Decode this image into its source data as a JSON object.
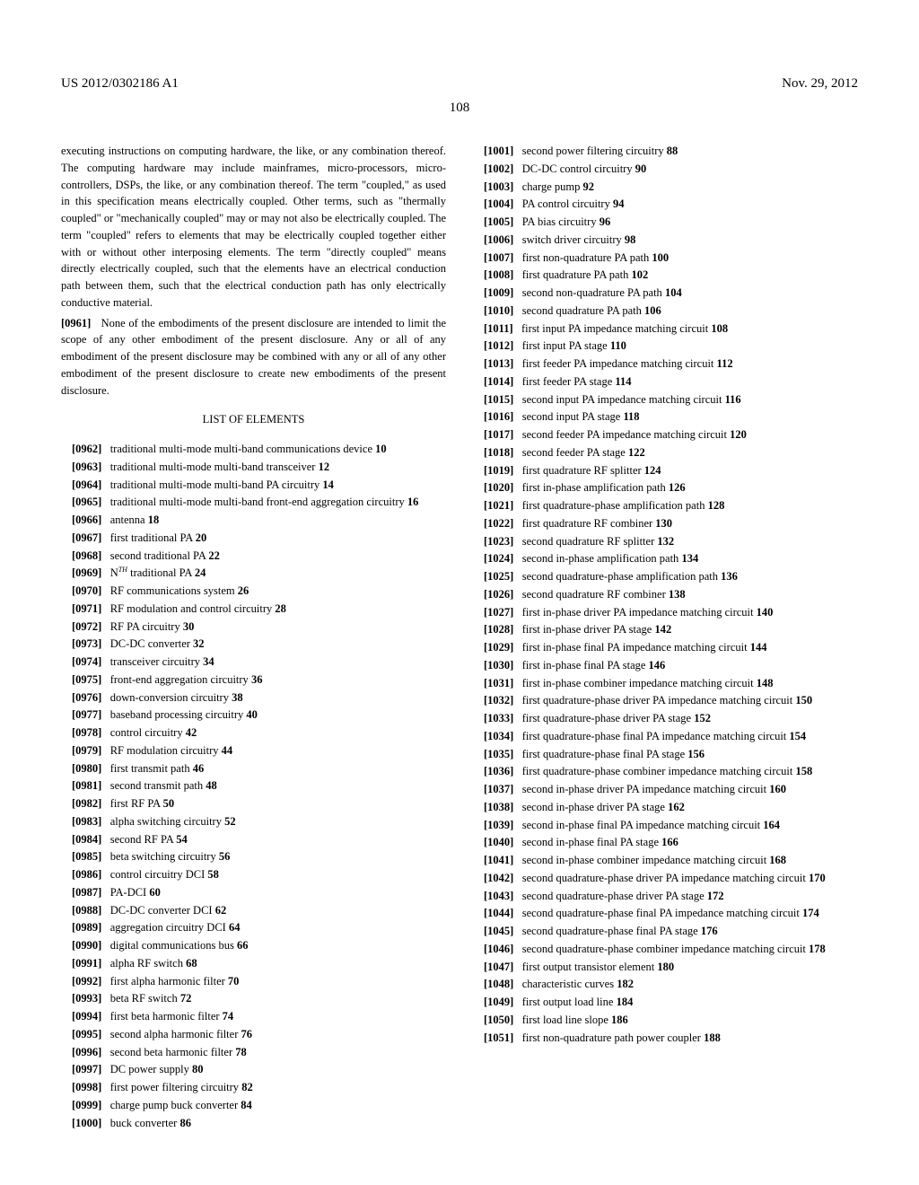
{
  "header": {
    "patent_number": "US 2012/0302186 A1",
    "date": "Nov. 29, 2012",
    "page": "108"
  },
  "colors": {
    "text": "#000000",
    "background": "#ffffff"
  },
  "typography": {
    "body_font": "Times New Roman",
    "body_size": 12.5,
    "header_size": 15
  },
  "left_column": {
    "intro_text": "executing instructions on computing hardware, the like, or any combination thereof. The computing hardware may include mainframes, micro-processors, micro-controllers, DSPs, the like, or any combination thereof. The term \"coupled,\" as used in this specification means electrically coupled. Other terms, such as \"thermally coupled\" or \"mechanically coupled\" may or may not also be electrically coupled. The term \"coupled\" refers to elements that may be electrically coupled together either with or without other interposing elements. The term \"directly coupled\" means directly electrically coupled, such that the elements have an electrical conduction path between them, such that the electrical conduction path has only electrically conductive material.",
    "para_0961_num": "[0961]",
    "para_0961_text": "None of the embodiments of the present disclosure are intended to limit the scope of any other embodiment of the present disclosure. Any or all of any embodiment of the present disclosure may be combined with any or all of any other embodiment of the present disclosure to create new embodiments of the present disclosure.",
    "section_title": "LIST OF ELEMENTS",
    "items": [
      {
        "num": "[0962]",
        "text": "traditional multi-mode multi-band communications device",
        "ref": "10"
      },
      {
        "num": "[0963]",
        "text": "traditional multi-mode multi-band transceiver",
        "ref": "12"
      },
      {
        "num": "[0964]",
        "text": "traditional multi-mode multi-band PA circuitry",
        "ref": "14"
      },
      {
        "num": "[0965]",
        "text": "traditional multi-mode multi-band front-end aggregation circuitry",
        "ref": "16"
      },
      {
        "num": "[0966]",
        "text": "antenna",
        "ref": "18"
      },
      {
        "num": "[0967]",
        "text": "first traditional PA",
        "ref": "20"
      },
      {
        "num": "[0968]",
        "text": "second traditional PA",
        "ref": "22"
      },
      {
        "num": "[0969]",
        "text": "N",
        "sup": "TH",
        "text2": " traditional PA",
        "ref": "24"
      },
      {
        "num": "[0970]",
        "text": "RF communications system",
        "ref": "26"
      },
      {
        "num": "[0971]",
        "text": "RF modulation and control circuitry",
        "ref": "28"
      },
      {
        "num": "[0972]",
        "text": "RF PA circuitry",
        "ref": "30"
      },
      {
        "num": "[0973]",
        "text": "DC-DC converter",
        "ref": "32"
      },
      {
        "num": "[0974]",
        "text": "transceiver circuitry",
        "ref": "34"
      },
      {
        "num": "[0975]",
        "text": "front-end aggregation circuitry",
        "ref": "36"
      },
      {
        "num": "[0976]",
        "text": "down-conversion circuitry",
        "ref": "38"
      },
      {
        "num": "[0977]",
        "text": "baseband processing circuitry",
        "ref": "40"
      },
      {
        "num": "[0978]",
        "text": "control circuitry",
        "ref": "42"
      },
      {
        "num": "[0979]",
        "text": "RF modulation circuitry",
        "ref": "44"
      },
      {
        "num": "[0980]",
        "text": "first transmit path",
        "ref": "46"
      },
      {
        "num": "[0981]",
        "text": "second transmit path",
        "ref": "48"
      },
      {
        "num": "[0982]",
        "text": "first RF PA",
        "ref": "50"
      },
      {
        "num": "[0983]",
        "text": "alpha switching circuitry",
        "ref": "52"
      },
      {
        "num": "[0984]",
        "text": "second RF PA",
        "ref": "54"
      },
      {
        "num": "[0985]",
        "text": "beta switching circuitry",
        "ref": "56"
      },
      {
        "num": "[0986]",
        "text": "control circuitry DCI",
        "ref": "58"
      },
      {
        "num": "[0987]",
        "text": "PA-DCI",
        "ref": "60"
      },
      {
        "num": "[0988]",
        "text": "DC-DC converter DCI",
        "ref": "62"
      },
      {
        "num": "[0989]",
        "text": "aggregation circuitry DCI",
        "ref": "64"
      },
      {
        "num": "[0990]",
        "text": "digital communications bus",
        "ref": "66"
      },
      {
        "num": "[0991]",
        "text": "alpha RF switch",
        "ref": "68"
      },
      {
        "num": "[0992]",
        "text": "first alpha harmonic filter",
        "ref": "70"
      },
      {
        "num": "[0993]",
        "text": "beta RF switch",
        "ref": "72"
      },
      {
        "num": "[0994]",
        "text": "first beta harmonic filter",
        "ref": "74"
      },
      {
        "num": "[0995]",
        "text": "second alpha harmonic filter",
        "ref": "76"
      },
      {
        "num": "[0996]",
        "text": "second beta harmonic filter",
        "ref": "78"
      },
      {
        "num": "[0997]",
        "text": "DC power supply",
        "ref": "80"
      },
      {
        "num": "[0998]",
        "text": "first power filtering circuitry",
        "ref": "82"
      },
      {
        "num": "[0999]",
        "text": "charge pump buck converter",
        "ref": "84"
      },
      {
        "num": "[1000]",
        "text": "buck converter",
        "ref": "86"
      }
    ]
  },
  "right_column": {
    "items": [
      {
        "num": "[1001]",
        "text": "second power filtering circuitry",
        "ref": "88"
      },
      {
        "num": "[1002]",
        "text": "DC-DC control circuitry",
        "ref": "90"
      },
      {
        "num": "[1003]",
        "text": "charge pump",
        "ref": "92"
      },
      {
        "num": "[1004]",
        "text": "PA control circuitry",
        "ref": "94"
      },
      {
        "num": "[1005]",
        "text": "PA bias circuitry",
        "ref": "96"
      },
      {
        "num": "[1006]",
        "text": "switch driver circuitry",
        "ref": "98"
      },
      {
        "num": "[1007]",
        "text": "first non-quadrature PA path",
        "ref": "100"
      },
      {
        "num": "[1008]",
        "text": "first quadrature PA path",
        "ref": "102"
      },
      {
        "num": "[1009]",
        "text": "second non-quadrature PA path",
        "ref": "104"
      },
      {
        "num": "[1010]",
        "text": "second quadrature PA path",
        "ref": "106"
      },
      {
        "num": "[1011]",
        "text": "first input PA impedance matching circuit",
        "ref": "108"
      },
      {
        "num": "[1012]",
        "text": "first input PA stage",
        "ref": "110"
      },
      {
        "num": "[1013]",
        "text": "first feeder PA impedance matching circuit",
        "ref": "112"
      },
      {
        "num": "[1014]",
        "text": "first feeder PA stage",
        "ref": "114"
      },
      {
        "num": "[1015]",
        "text": "second input PA impedance matching circuit",
        "ref": "116"
      },
      {
        "num": "[1016]",
        "text": "second input PA stage",
        "ref": "118"
      },
      {
        "num": "[1017]",
        "text": "second feeder PA impedance matching circuit",
        "ref": "120"
      },
      {
        "num": "[1018]",
        "text": "second feeder PA stage",
        "ref": "122"
      },
      {
        "num": "[1019]",
        "text": "first quadrature RF splitter",
        "ref": "124"
      },
      {
        "num": "[1020]",
        "text": "first in-phase amplification path",
        "ref": "126"
      },
      {
        "num": "[1021]",
        "text": "first quadrature-phase amplification path",
        "ref": "128"
      },
      {
        "num": "[1022]",
        "text": "first quadrature RF combiner",
        "ref": "130"
      },
      {
        "num": "[1023]",
        "text": "second quadrature RF splitter",
        "ref": "132"
      },
      {
        "num": "[1024]",
        "text": "second in-phase amplification path",
        "ref": "134"
      },
      {
        "num": "[1025]",
        "text": "second quadrature-phase amplification path",
        "ref": "136"
      },
      {
        "num": "[1026]",
        "text": "second quadrature RF combiner",
        "ref": "138"
      },
      {
        "num": "[1027]",
        "text": "first in-phase driver PA impedance matching circuit",
        "ref": "140"
      },
      {
        "num": "[1028]",
        "text": "first in-phase driver PA stage",
        "ref": "142"
      },
      {
        "num": "[1029]",
        "text": "first in-phase final PA impedance matching circuit",
        "ref": "144"
      },
      {
        "num": "[1030]",
        "text": "first in-phase final PA stage",
        "ref": "146"
      },
      {
        "num": "[1031]",
        "text": "first in-phase combiner impedance matching circuit",
        "ref": "148"
      },
      {
        "num": "[1032]",
        "text": "first quadrature-phase driver PA impedance matching circuit",
        "ref": "150"
      },
      {
        "num": "[1033]",
        "text": "first quadrature-phase driver PA stage",
        "ref": "152"
      },
      {
        "num": "[1034]",
        "text": "first quadrature-phase final PA impedance matching circuit",
        "ref": "154"
      },
      {
        "num": "[1035]",
        "text": "first quadrature-phase final PA stage",
        "ref": "156"
      },
      {
        "num": "[1036]",
        "text": "first quadrature-phase combiner impedance matching circuit",
        "ref": "158"
      },
      {
        "num": "[1037]",
        "text": "second in-phase driver PA impedance matching circuit",
        "ref": "160"
      },
      {
        "num": "[1038]",
        "text": "second in-phase driver PA stage",
        "ref": "162"
      },
      {
        "num": "[1039]",
        "text": "second in-phase final PA impedance matching circuit",
        "ref": "164"
      },
      {
        "num": "[1040]",
        "text": "second in-phase final PA stage",
        "ref": "166"
      },
      {
        "num": "[1041]",
        "text": "second in-phase combiner impedance matching circuit",
        "ref": "168"
      },
      {
        "num": "[1042]",
        "text": "second quadrature-phase driver PA impedance matching circuit",
        "ref": "170"
      },
      {
        "num": "[1043]",
        "text": "second quadrature-phase driver PA stage",
        "ref": "172"
      },
      {
        "num": "[1044]",
        "text": "second quadrature-phase final PA impedance matching circuit",
        "ref": "174"
      },
      {
        "num": "[1045]",
        "text": "second quadrature-phase final PA stage",
        "ref": "176"
      },
      {
        "num": "[1046]",
        "text": "second quadrature-phase combiner impedance matching circuit",
        "ref": "178"
      },
      {
        "num": "[1047]",
        "text": "first output transistor element",
        "ref": "180"
      },
      {
        "num": "[1048]",
        "text": "characteristic curves",
        "ref": "182"
      },
      {
        "num": "[1049]",
        "text": "first output load line",
        "ref": "184"
      },
      {
        "num": "[1050]",
        "text": "first load line slope",
        "ref": "186"
      },
      {
        "num": "[1051]",
        "text": "first non-quadrature path power coupler",
        "ref": "188"
      }
    ]
  }
}
